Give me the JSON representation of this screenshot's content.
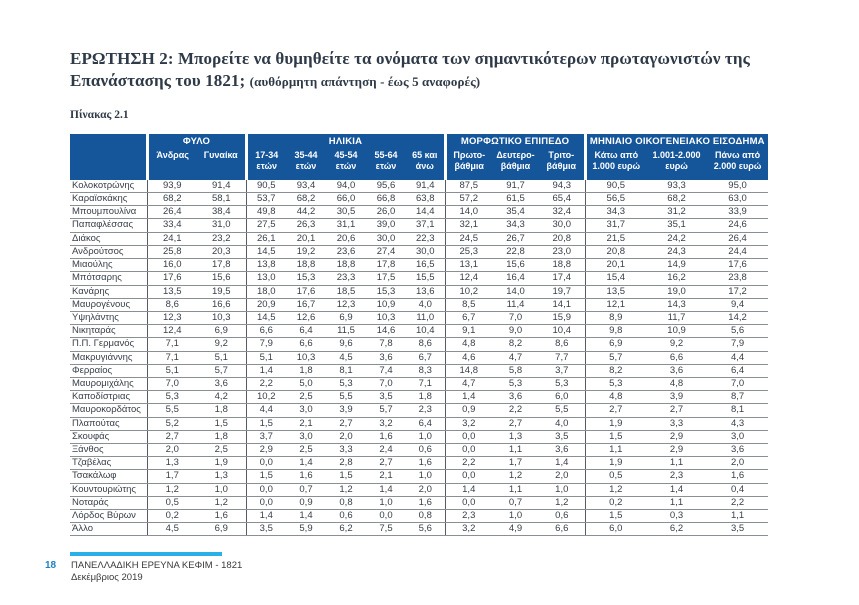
{
  "header": {
    "question": "ΕΡΩΤΗΣΗ 2: Μπορείτε να θυμηθείτε τα ονόματα των σημαντικότερων πρωταγωνιστών της Επανάστασης του 1821;",
    "question_note": "(αυθόρμητη απάντηση - έως 5 αναφορές)",
    "table_label": "Πίνακας 2.1"
  },
  "table": {
    "groups": [
      {
        "label": "ΦΥΛΟ",
        "columns": [
          "Άνδρας",
          "Γυναίκα"
        ]
      },
      {
        "label": "ΗΛΙΚΙΑ",
        "columns": [
          "17-34\nετών",
          "35-44\nετών",
          "45-54\nετών",
          "55-64\nετών",
          "65 και\nάνω"
        ]
      },
      {
        "label": "ΜΟΡΦΩΤΙΚΟ ΕΠΙΠΕΔΟ",
        "columns": [
          "Πρωτο-\nβάθμια",
          "Δευτερο-\nβάθμια",
          "Τριτο-\nβάθμια"
        ]
      },
      {
        "label": "ΜΗΝΙΑΙΟ ΟΙΚΟΓΕΝΕΙΑΚΟ ΕΙΣΟΔΗΜΑ",
        "columns": [
          "Κάτω από\n1.000 ευρώ",
          "1.001-2.000\nευρώ",
          "Πάνω από\n2.000 ευρώ"
        ]
      }
    ],
    "rows": [
      {
        "name": "Κολοκοτρώνης",
        "values": [
          "93,9",
          "91,4",
          "90,5",
          "93,4",
          "94,0",
          "95,6",
          "91,4",
          "87,5",
          "91,7",
          "94,3",
          "90,5",
          "93,3",
          "95,0"
        ]
      },
      {
        "name": "Καραϊσκάκης",
        "values": [
          "68,2",
          "58,1",
          "53,7",
          "68,2",
          "66,0",
          "66,8",
          "63,8",
          "57,2",
          "61,5",
          "65,4",
          "56,5",
          "68,2",
          "63,0"
        ]
      },
      {
        "name": "Μπουμπουλίνα",
        "values": [
          "26,4",
          "38,4",
          "49,8",
          "44,2",
          "30,5",
          "26,0",
          "14,4",
          "14,0",
          "35,4",
          "32,4",
          "34,3",
          "31,2",
          "33,9"
        ]
      },
      {
        "name": "Παπαφλέσσας",
        "values": [
          "33,4",
          "31,0",
          "27,5",
          "26,3",
          "31,1",
          "39,0",
          "37,1",
          "32,1",
          "34,3",
          "30,0",
          "31,7",
          "35,1",
          "24,6"
        ]
      },
      {
        "name": "Διάκος",
        "values": [
          "24,1",
          "23,2",
          "26,1",
          "20,1",
          "20,6",
          "30,0",
          "22,3",
          "24,5",
          "26,7",
          "20,8",
          "21,5",
          "24,2",
          "26,4"
        ]
      },
      {
        "name": "Ανδρούτσος",
        "values": [
          "25,8",
          "20,3",
          "14,5",
          "19,2",
          "23,6",
          "27,4",
          "30,0",
          "25,3",
          "22,8",
          "23,0",
          "20,8",
          "24,3",
          "24,4"
        ]
      },
      {
        "name": "Μιαούλης",
        "values": [
          "16,0",
          "17,8",
          "13,8",
          "18,8",
          "18,8",
          "17,8",
          "16,5",
          "13,1",
          "15,6",
          "18,8",
          "20,1",
          "14,9",
          "17,6"
        ]
      },
      {
        "name": "Μπότσαρης",
        "values": [
          "17,6",
          "15,6",
          "13,0",
          "15,3",
          "23,3",
          "17,5",
          "15,5",
          "12,4",
          "16,4",
          "17,4",
          "15,4",
          "16,2",
          "23,8"
        ]
      },
      {
        "name": "Κανάρης",
        "values": [
          "13,5",
          "19,5",
          "18,0",
          "17,6",
          "18,5",
          "15,3",
          "13,6",
          "10,2",
          "14,0",
          "19,7",
          "13,5",
          "19,0",
          "17,2"
        ]
      },
      {
        "name": "Μαυρογένους",
        "values": [
          "8,6",
          "16,6",
          "20,9",
          "16,7",
          "12,3",
          "10,9",
          "4,0",
          "8,5",
          "11,4",
          "14,1",
          "12,1",
          "14,3",
          "9,4"
        ]
      },
      {
        "name": "Υψηλάντης",
        "values": [
          "12,3",
          "10,3",
          "14,5",
          "12,6",
          "6,9",
          "10,3",
          "11,0",
          "6,7",
          "7,0",
          "15,9",
          "8,9",
          "11,7",
          "14,2"
        ]
      },
      {
        "name": "Νικηταράς",
        "values": [
          "12,4",
          "6,9",
          "6,6",
          "6,4",
          "11,5",
          "14,6",
          "10,4",
          "9,1",
          "9,0",
          "10,4",
          "9,8",
          "10,9",
          "5,6"
        ]
      },
      {
        "name": "Π.Π. Γερμανός",
        "values": [
          "7,1",
          "9,2",
          "7,9",
          "6,6",
          "9,6",
          "7,8",
          "8,6",
          "4,8",
          "8,2",
          "8,6",
          "6,9",
          "9,2",
          "7,9"
        ]
      },
      {
        "name": "Μακρυγιάννης",
        "values": [
          "7,1",
          "5,1",
          "5,1",
          "10,3",
          "4,5",
          "3,6",
          "6,7",
          "4,6",
          "4,7",
          "7,7",
          "5,7",
          "6,6",
          "4,4"
        ]
      },
      {
        "name": "Φερραίος",
        "values": [
          "5,1",
          "5,7",
          "1,4",
          "1,8",
          "8,1",
          "7,4",
          "8,3",
          "14,8",
          "5,8",
          "3,7",
          "8,2",
          "3,6",
          "6,4"
        ]
      },
      {
        "name": "Μαυρομιχάλης",
        "values": [
          "7,0",
          "3,6",
          "2,2",
          "5,0",
          "5,3",
          "7,0",
          "7,1",
          "4,7",
          "5,3",
          "5,3",
          "5,3",
          "4,8",
          "7,0"
        ]
      },
      {
        "name": "Καποδίστριας",
        "values": [
          "5,3",
          "4,2",
          "10,2",
          "2,5",
          "5,5",
          "3,5",
          "1,8",
          "1,4",
          "3,6",
          "6,0",
          "4,8",
          "3,9",
          "8,7"
        ]
      },
      {
        "name": "Μαυροκορδάτος",
        "values": [
          "5,5",
          "1,8",
          "4,4",
          "3,0",
          "3,9",
          "5,7",
          "2,3",
          "0,9",
          "2,2",
          "5,5",
          "2,7",
          "2,7",
          "8,1"
        ]
      },
      {
        "name": "Πλαπούτας",
        "values": [
          "5,2",
          "1,5",
          "1,5",
          "2,1",
          "2,7",
          "3,2",
          "6,4",
          "3,2",
          "2,7",
          "4,0",
          "1,9",
          "3,3",
          "4,3"
        ]
      },
      {
        "name": "Σκουφάς",
        "values": [
          "2,7",
          "1,8",
          "3,7",
          "3,0",
          "2,0",
          "1,6",
          "1,0",
          "0,0",
          "1,3",
          "3,5",
          "1,5",
          "2,9",
          "3,0"
        ]
      },
      {
        "name": "Ξάνθος",
        "values": [
          "2,0",
          "2,5",
          "2,9",
          "2,5",
          "3,3",
          "2,4",
          "0,6",
          "0,0",
          "1,1",
          "3,6",
          "1,1",
          "2,9",
          "3,6"
        ]
      },
      {
        "name": "Τζαβέλας",
        "values": [
          "1,3",
          "1,9",
          "0,0",
          "1,4",
          "2,8",
          "2,7",
          "1,6",
          "2,2",
          "1,7",
          "1,4",
          "1,9",
          "1,1",
          "2,0"
        ]
      },
      {
        "name": "Τσακάλωφ",
        "values": [
          "1,7",
          "1,3",
          "1,5",
          "1,6",
          "1,5",
          "2,1",
          "1,0",
          "0,0",
          "1,2",
          "2,0",
          "0,5",
          "2,3",
          "1,6"
        ]
      },
      {
        "name": "Κουντουριώτης",
        "values": [
          "1,2",
          "1,0",
          "0,0",
          "0,7",
          "1,2",
          "1,4",
          "2,0",
          "1,4",
          "1,1",
          "1,0",
          "1,2",
          "1,4",
          "0,4"
        ]
      },
      {
        "name": "Νοταράς",
        "values": [
          "0,5",
          "1,2",
          "0,0",
          "0,9",
          "0,8",
          "1,0",
          "1,6",
          "0,0",
          "0,7",
          "1,2",
          "0,2",
          "1,1",
          "2,2"
        ]
      },
      {
        "name": "Λόρδος Βύρων",
        "values": [
          "0,2",
          "1,6",
          "1,4",
          "1,4",
          "0,6",
          "0,0",
          "0,8",
          "2,3",
          "1,0",
          "0,6",
          "1,5",
          "0,3",
          "1,1"
        ]
      },
      {
        "name": "Άλλο",
        "values": [
          "4,5",
          "6,9",
          "3,5",
          "5,9",
          "6,2",
          "7,5",
          "5,6",
          "3,2",
          "4,9",
          "6,6",
          "6,0",
          "6,2",
          "3,5"
        ]
      }
    ]
  },
  "footer": {
    "page_number": "18",
    "line1": "ΠΑΝΕΛΛΑΔΙΚΗ ΕΡΕΥΝΑ ΚΕΦΙΜ - 1821",
    "line2": "Δεκέμβριος 2019"
  },
  "colors": {
    "table_header_bg": "#15569b",
    "accent_cyan": "#29b0e6",
    "page_number_blue": "#1f7fc0"
  }
}
